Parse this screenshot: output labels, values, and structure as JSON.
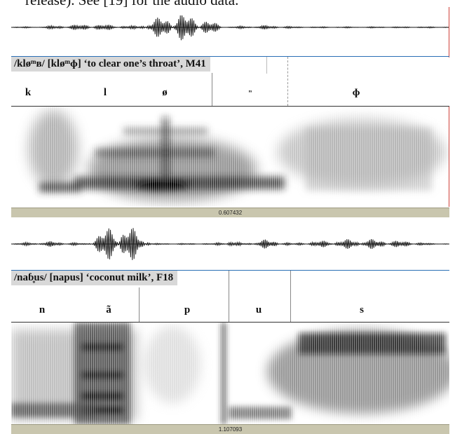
{
  "caption_fragment": "release). See [19] for the audio data.",
  "figure1": {
    "title": "/kløᵐʙ/ [kløᵐɸ] ‘to clear one’s throat’, M41",
    "segments": [
      "k",
      "l",
      "ø",
      "ᵐ",
      "ɸ"
    ],
    "duration": "0.607432"
  },
  "figure2": {
    "title": "/naɓ̥us/ [napus] ‘coconut milk’, F18",
    "segments": [
      "n",
      "ã",
      "p",
      "u",
      "s"
    ],
    "duration": "1.107093"
  }
}
